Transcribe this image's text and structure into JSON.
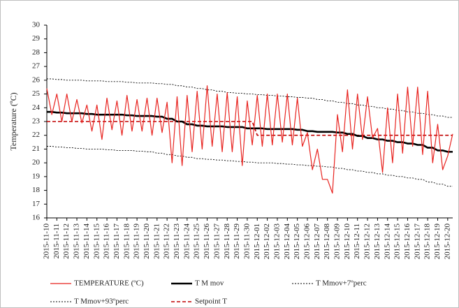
{
  "chart_data": {
    "type": "line",
    "y_label": "Temperature (ºC)",
    "categories": [
      "2015-11-10",
      null,
      "2015-11-11",
      null,
      "2015-11-12",
      null,
      "2015-11-13",
      null,
      "2015-11-14",
      null,
      "2015-11-15",
      null,
      "2015-11-16",
      null,
      "2015-11-17",
      null,
      "2015-11-18",
      null,
      "2015-11-19",
      null,
      "2015-11-20",
      null,
      "2015-11-21",
      null,
      "2015-11-22",
      null,
      "2015-11-23",
      null,
      "2015-11-24",
      null,
      "2015-11-25",
      null,
      "2015-11-26",
      null,
      "2015-11-27",
      null,
      "2015-11-28",
      null,
      "2015-11-29",
      null,
      "2015-11-30",
      null,
      "2015-12-01",
      null,
      "2015-12-02",
      null,
      "2015-12-03",
      null,
      "2015-12-04",
      null,
      "2015-12-05",
      null,
      "2015-12-06",
      null,
      "2015-12-07",
      null,
      "2015-12-08",
      null,
      "2015-12-09",
      null,
      "2015-12-10",
      null,
      "2015-12-11",
      null,
      "2015-12-12",
      null,
      "2015-12-13",
      null,
      "2015-12-14",
      null,
      "2015-12-15",
      null,
      "2015-12-16",
      null,
      "2015-12-17",
      null,
      "2015-12-18",
      null,
      "2015-12-19",
      null,
      "2015-12-20",
      null
    ],
    "ylim": [
      16,
      30
    ],
    "yticks": [
      16,
      17,
      18,
      19,
      20,
      21,
      22,
      23,
      24,
      25,
      26,
      27,
      28,
      29,
      30
    ],
    "grid": false,
    "series": [
      {
        "name": "TEMPERATURE (ºC)",
        "color": "#e8231f",
        "style": "solid",
        "values": [
          25.4,
          23.5,
          25.0,
          23.0,
          25.0,
          23.0,
          24.6,
          22.9,
          24.2,
          22.3,
          24.2,
          21.7,
          24.7,
          22.4,
          24.5,
          22.0,
          24.9,
          22.3,
          24.6,
          22.3,
          24.7,
          22.0,
          24.7,
          22.2,
          24.4,
          20.0,
          24.8,
          19.8,
          24.9,
          20.8,
          25.2,
          21.0,
          25.6,
          21.2,
          25.0,
          20.8,
          25.1,
          20.8,
          24.8,
          19.8,
          24.5,
          21.3,
          24.9,
          21.2,
          25.0,
          21.3,
          25.0,
          21.5,
          25.0,
          21.3,
          24.7,
          21.2,
          22.2,
          19.5,
          21.0,
          18.8,
          18.8,
          17.8,
          23.5,
          20.8,
          25.3,
          21.0,
          25.0,
          21.7,
          24.8,
          21.8,
          22.5,
          19.3,
          24.0,
          20.0,
          25.0,
          20.7,
          25.5,
          21.2,
          25.5,
          20.6,
          25.2,
          20.0,
          22.8,
          19.5,
          20.5,
          22.1
        ]
      },
      {
        "name": "T M mov",
        "color": "#000000",
        "style": "bold",
        "values": [
          23.7,
          23.7,
          23.65,
          23.65,
          23.6,
          23.6,
          23.6,
          23.6,
          23.55,
          23.55,
          23.5,
          23.5,
          23.5,
          23.5,
          23.5,
          23.5,
          23.45,
          23.45,
          23.4,
          23.4,
          23.4,
          23.4,
          23.35,
          23.35,
          23.2,
          23.2,
          23.0,
          23.0,
          22.8,
          22.8,
          22.7,
          22.7,
          22.65,
          22.65,
          22.65,
          22.65,
          22.6,
          22.6,
          22.6,
          22.6,
          22.5,
          22.5,
          22.5,
          22.5,
          22.45,
          22.45,
          22.45,
          22.45,
          22.45,
          22.45,
          22.4,
          22.4,
          22.3,
          22.3,
          22.25,
          22.25,
          22.25,
          22.25,
          22.2,
          22.2,
          22.1,
          22.1,
          21.95,
          21.95,
          21.8,
          21.8,
          21.7,
          21.7,
          21.6,
          21.6,
          21.5,
          21.5,
          21.4,
          21.4,
          21.3,
          21.3,
          21.1,
          21.1,
          20.9,
          20.9,
          20.8,
          20.8
        ]
      },
      {
        "name": "T Mmov+7ºperc",
        "color": "#000000",
        "style": "dotted",
        "values": [
          21.2,
          21.2,
          21.15,
          21.15,
          21.1,
          21.1,
          21.05,
          21.05,
          21.0,
          21.0,
          21.0,
          21.0,
          20.95,
          20.95,
          20.9,
          20.9,
          20.9,
          20.9,
          20.85,
          20.85,
          20.8,
          20.8,
          20.7,
          20.7,
          20.6,
          20.6,
          20.5,
          20.5,
          20.4,
          20.4,
          20.3,
          20.3,
          20.25,
          20.25,
          20.2,
          20.2,
          20.15,
          20.15,
          20.1,
          20.1,
          20.05,
          20.05,
          20.0,
          20.0,
          20.0,
          20.0,
          19.95,
          19.95,
          19.9,
          19.9,
          19.85,
          19.85,
          19.8,
          19.8,
          19.75,
          19.75,
          19.7,
          19.7,
          19.6,
          19.6,
          19.5,
          19.5,
          19.4,
          19.4,
          19.3,
          19.3,
          19.2,
          19.2,
          19.1,
          19.1,
          19.0,
          19.0,
          18.9,
          18.9,
          18.8,
          18.8,
          18.6,
          18.6,
          18.45,
          18.45,
          18.3,
          18.3
        ]
      },
      {
        "name": "T Mmov+93ºperc",
        "color": "#000000",
        "style": "dotted",
        "values": [
          26.1,
          26.1,
          26.05,
          26.05,
          26.0,
          26.0,
          26.0,
          26.0,
          25.95,
          25.95,
          25.95,
          25.95,
          25.9,
          25.9,
          25.9,
          25.9,
          25.85,
          25.85,
          25.8,
          25.8,
          25.8,
          25.8,
          25.75,
          25.75,
          25.7,
          25.7,
          25.6,
          25.6,
          25.5,
          25.5,
          25.4,
          25.4,
          25.3,
          25.3,
          25.2,
          25.2,
          25.1,
          25.1,
          25.05,
          25.05,
          25.0,
          25.0,
          24.95,
          24.95,
          24.9,
          24.9,
          24.85,
          24.85,
          24.8,
          24.8,
          24.75,
          24.75,
          24.7,
          24.7,
          24.6,
          24.6,
          24.5,
          24.5,
          24.4,
          24.4,
          24.3,
          24.3,
          24.2,
          24.2,
          24.1,
          24.1,
          24.0,
          24.0,
          23.9,
          23.9,
          23.8,
          23.8,
          23.7,
          23.7,
          23.6,
          23.6,
          23.5,
          23.5,
          23.4,
          23.4,
          23.3,
          23.3
        ]
      },
      {
        "name": "Setpoint T",
        "color": "#c00000",
        "style": "dashed",
        "values": [
          23,
          23,
          23,
          23,
          23,
          23,
          23,
          23,
          23,
          23,
          23,
          23,
          23,
          23,
          23,
          23,
          23,
          23,
          23,
          23,
          23,
          23,
          23,
          23,
          23,
          23,
          23,
          23,
          23,
          23,
          23,
          23,
          23,
          23,
          23,
          23,
          23,
          23,
          23,
          23,
          23,
          23,
          22,
          22,
          22,
          22,
          22,
          22,
          22,
          22,
          22,
          22,
          22,
          22,
          22,
          22,
          22,
          22,
          22,
          22,
          22,
          22,
          22,
          22,
          22,
          22,
          22,
          22,
          22,
          22,
          22,
          22,
          22,
          22,
          22,
          22,
          22,
          22,
          22,
          22,
          22,
          22
        ]
      }
    ]
  }
}
